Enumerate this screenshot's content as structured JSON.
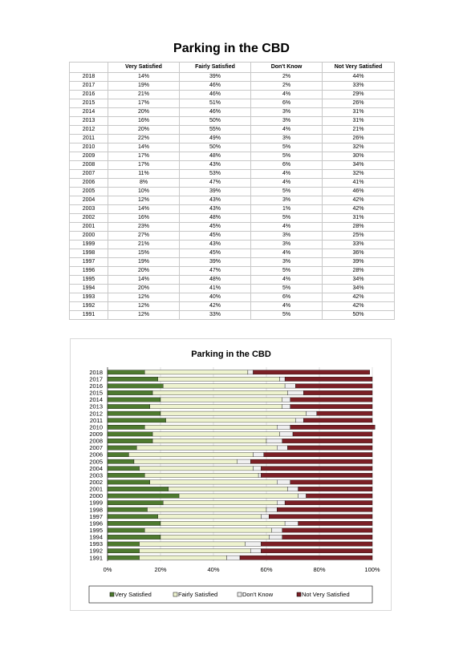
{
  "page_title": "Parking in the CBD",
  "table": {
    "columns": [
      "",
      "Very Satisfied",
      "Fairly Satisfied",
      "Don't Know",
      "Not Very Satisfied"
    ],
    "rows": [
      [
        "2018",
        "14%",
        "39%",
        "2%",
        "44%"
      ],
      [
        "2017",
        "19%",
        "46%",
        "2%",
        "33%"
      ],
      [
        "2016",
        "21%",
        "46%",
        "4%",
        "29%"
      ],
      [
        "2015",
        "17%",
        "51%",
        "6%",
        "26%"
      ],
      [
        "2014",
        "20%",
        "46%",
        "3%",
        "31%"
      ],
      [
        "2013",
        "16%",
        "50%",
        "3%",
        "31%"
      ],
      [
        "2012",
        "20%",
        "55%",
        "4%",
        "21%"
      ],
      [
        "2011",
        "22%",
        "49%",
        "3%",
        "26%"
      ],
      [
        "2010",
        "14%",
        "50%",
        "5%",
        "32%"
      ],
      [
        "2009",
        "17%",
        "48%",
        "5%",
        "30%"
      ],
      [
        "2008",
        "17%",
        "43%",
        "6%",
        "34%"
      ],
      [
        "2007",
        "11%",
        "53%",
        "4%",
        "32%"
      ],
      [
        "2006",
        "8%",
        "47%",
        "4%",
        "41%"
      ],
      [
        "2005",
        "10%",
        "39%",
        "5%",
        "46%"
      ],
      [
        "2004",
        "12%",
        "43%",
        "3%",
        "42%"
      ],
      [
        "2003",
        "14%",
        "43%",
        "1%",
        "42%"
      ],
      [
        "2002",
        "16%",
        "48%",
        "5%",
        "31%"
      ],
      [
        "2001",
        "23%",
        "45%",
        "4%",
        "28%"
      ],
      [
        "2000",
        "27%",
        "45%",
        "3%",
        "25%"
      ],
      [
        "1999",
        "21%",
        "43%",
        "3%",
        "33%"
      ],
      [
        "1998",
        "15%",
        "45%",
        "4%",
        "36%"
      ],
      [
        "1997",
        "19%",
        "39%",
        "3%",
        "39%"
      ],
      [
        "1996",
        "20%",
        "47%",
        "5%",
        "28%"
      ],
      [
        "1995",
        "14%",
        "48%",
        "4%",
        "34%"
      ],
      [
        "1994",
        "20%",
        "41%",
        "5%",
        "34%"
      ],
      [
        "1993",
        "12%",
        "40%",
        "6%",
        "42%"
      ],
      [
        "1992",
        "12%",
        "42%",
        "4%",
        "42%"
      ],
      [
        "1991",
        "12%",
        "33%",
        "5%",
        "50%"
      ]
    ]
  },
  "colors": {
    "very_satisfied": "#4e7a2f",
    "fairly_satisfied": "#eef3cf",
    "dont_know": "#f0f0f0",
    "not_very_satisfied": "#7b1f25",
    "gridline": "#cfcfcf"
  },
  "chart_data": {
    "type": "bar",
    "orientation": "horizontal",
    "stacked": true,
    "title": "Parking in the CBD",
    "categories": [
      "2018",
      "2017",
      "2016",
      "2015",
      "2014",
      "2013",
      "2012",
      "2011",
      "2010",
      "2009",
      "2008",
      "2007",
      "2006",
      "2005",
      "2004",
      "2003",
      "2002",
      "2001",
      "2000",
      "1999",
      "1998",
      "1997",
      "1996",
      "1995",
      "1994",
      "1993",
      "1992",
      "1991"
    ],
    "series": [
      {
        "name": "Very Satisfied",
        "values": [
          14,
          19,
          21,
          17,
          20,
          16,
          20,
          22,
          14,
          17,
          17,
          11,
          8,
          10,
          12,
          14,
          16,
          23,
          27,
          21,
          15,
          19,
          20,
          14,
          20,
          12,
          12,
          12
        ]
      },
      {
        "name": "Fairly Satisfied",
        "values": [
          39,
          46,
          46,
          51,
          46,
          50,
          55,
          49,
          50,
          48,
          43,
          53,
          47,
          39,
          43,
          43,
          48,
          45,
          45,
          43,
          45,
          39,
          47,
          48,
          41,
          40,
          42,
          33
        ]
      },
      {
        "name": "Don't Know",
        "values": [
          2,
          2,
          4,
          6,
          3,
          3,
          4,
          3,
          5,
          5,
          6,
          4,
          4,
          5,
          3,
          1,
          5,
          4,
          3,
          3,
          4,
          3,
          5,
          4,
          5,
          6,
          4,
          5
        ]
      },
      {
        "name": "Not Very Satisfied",
        "values": [
          44,
          33,
          29,
          26,
          31,
          31,
          21,
          26,
          32,
          30,
          34,
          32,
          41,
          46,
          42,
          42,
          31,
          28,
          25,
          33,
          36,
          39,
          28,
          34,
          34,
          42,
          42,
          50
        ]
      }
    ],
    "xlim": [
      0,
      100
    ],
    "x_ticks": [
      "0%",
      "20%",
      "40%",
      "60%",
      "80%",
      "100%"
    ],
    "grid": true,
    "legend_position": "bottom"
  }
}
